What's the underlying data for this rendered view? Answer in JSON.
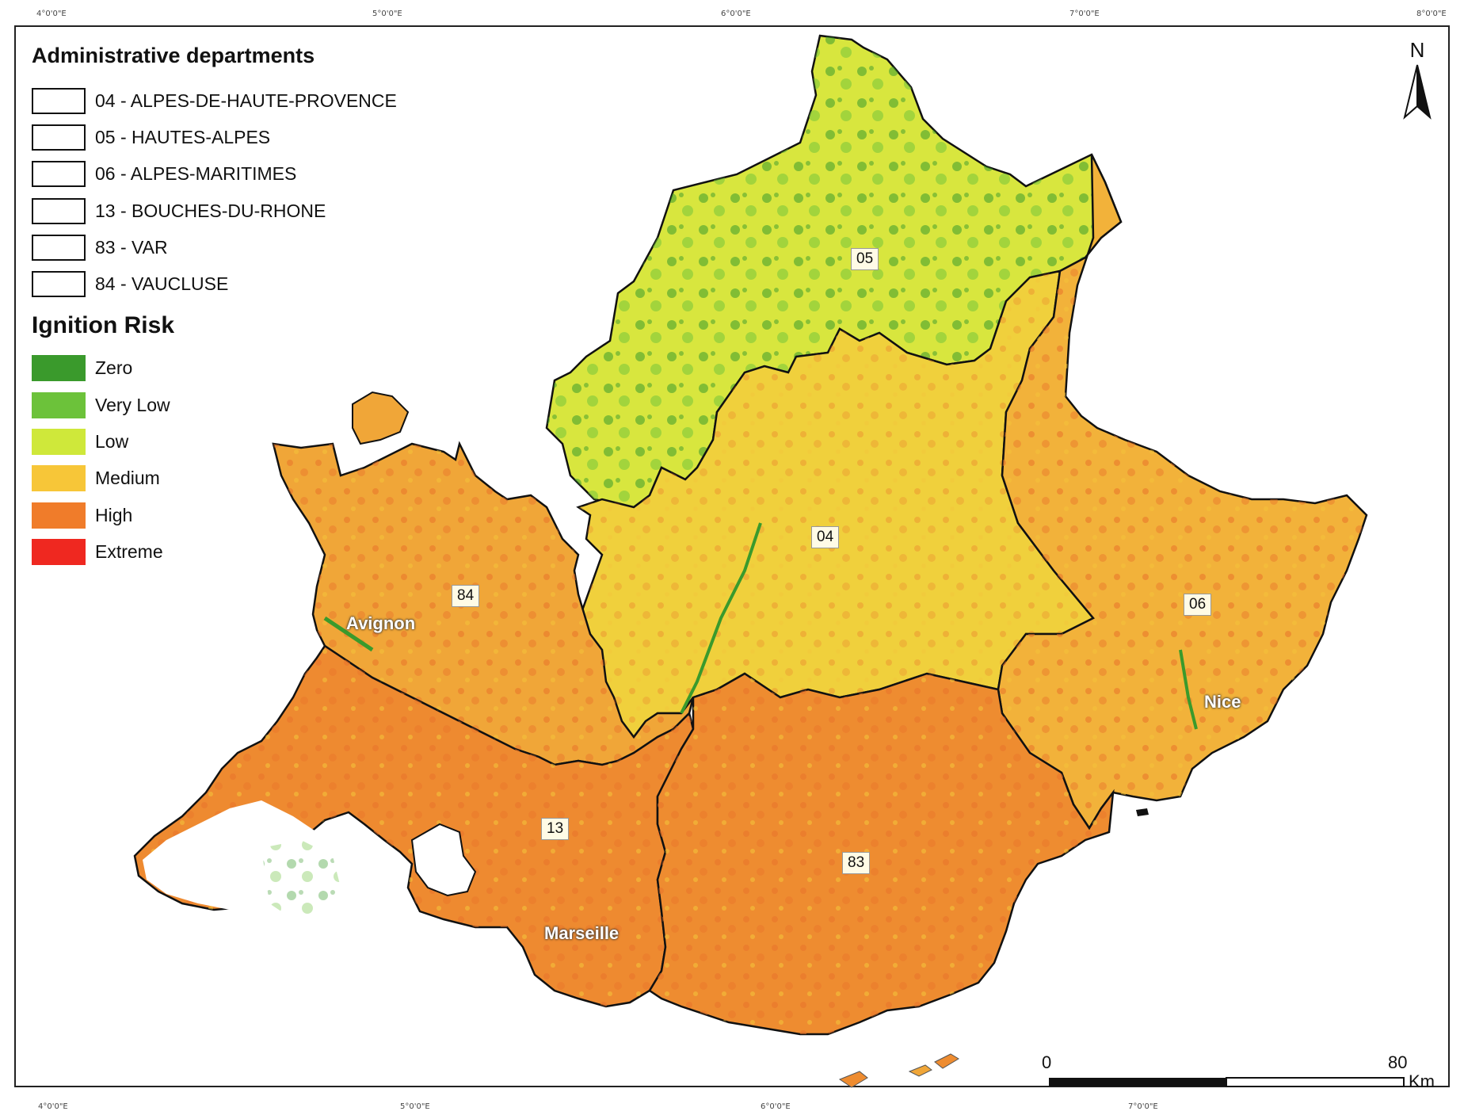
{
  "coordinate_ticks": {
    "top": [
      "4°0'0\"E",
      "5°0'0\"E",
      "6°0'0\"E",
      "7°0'0\"E",
      "8°0'0\"E"
    ],
    "bottom": [
      "4°0'0\"E",
      "5°0'0\"E",
      "6°0'0\"E",
      "7°0'0\"E"
    ]
  },
  "legend": {
    "departments_title": "Administrative departments",
    "departments": [
      {
        "label": "04 - ALPES-DE-HAUTE-PROVENCE"
      },
      {
        "label": "05 - HAUTES-ALPES"
      },
      {
        "label": "06 - ALPES-MARITIMES"
      },
      {
        "label": "13 - BOUCHES-DU-RHONE"
      },
      {
        "label": "83 - VAR"
      },
      {
        "label": "84 - VAUCLUSE"
      }
    ],
    "risk_title": "Ignition Risk",
    "risk_classes": [
      {
        "label": "Zero",
        "color": "#3a9a2c"
      },
      {
        "label": "Very Low",
        "color": "#6cc23a"
      },
      {
        "label": "Low",
        "color": "#cfe83a"
      },
      {
        "label": "Medium",
        "color": "#f7c638"
      },
      {
        "label": "High",
        "color": "#f07c2a"
      },
      {
        "label": "Extreme",
        "color": "#ef2820"
      }
    ]
  },
  "map": {
    "department_labels": {
      "d05": "05",
      "d04": "04",
      "d06": "06",
      "d84": "84",
      "d13": "13",
      "d83": "83"
    },
    "cities": {
      "avignon": "Avignon",
      "marseille": "Marseille",
      "nice": "Nice"
    }
  },
  "north_arrow": "N",
  "scale_bar": {
    "start": "0",
    "end": "80",
    "unit": "Km"
  }
}
